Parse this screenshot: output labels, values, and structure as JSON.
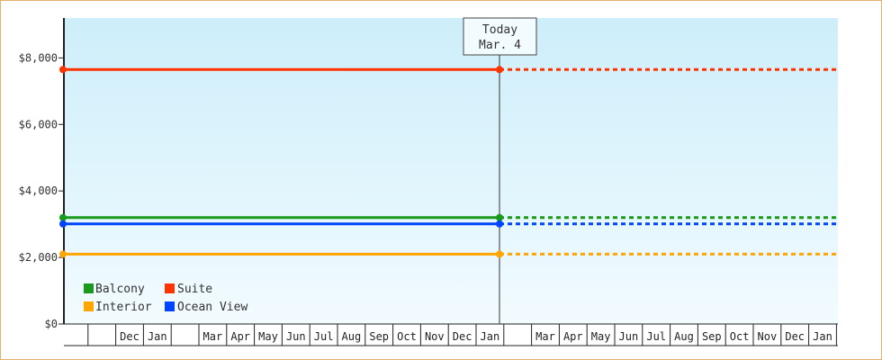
{
  "chart_data": {
    "type": "line",
    "title": "",
    "xlabel": "",
    "ylabel": "",
    "ylim": [
      0,
      9200
    ],
    "y_ticks": [
      0,
      2000,
      4000,
      6000,
      8000
    ],
    "y_tick_labels": [
      "$0",
      "$2,000",
      "$4,000",
      "$6,000",
      "$8,000"
    ],
    "x_range_months": [
      "Oct",
      "Nov",
      "Dec",
      "Jan",
      "Feb",
      "Mar",
      "Apr",
      "May",
      "Jun",
      "Jul",
      "Aug",
      "Sep",
      "Oct",
      "Nov",
      "Dec",
      "Jan",
      "Feb",
      "Mar",
      "Apr",
      "May",
      "Jun",
      "Jul",
      "Aug",
      "Sep",
      "Oct",
      "Nov",
      "Dec",
      "Jan",
      "Feb"
    ],
    "x_labels": [
      "",
      "",
      "Dec",
      "Jan",
      "",
      "Mar",
      "Apr",
      "May",
      "Jun",
      "Jul",
      "Aug",
      "Sep",
      "Oct",
      "Nov",
      "Dec",
      "Jan",
      "",
      "Mar",
      "Apr",
      "May",
      "Jun",
      "Jul",
      "Aug",
      "Sep",
      "Oct",
      "Nov",
      "Dec",
      "Jan",
      ""
    ],
    "today": {
      "line1": "Today",
      "line2": "Mar. 4",
      "month_index": 17.1
    },
    "series": [
      {
        "name": "Balcony",
        "color": "#1a9a1a",
        "values_history": [
          3200,
          3200
        ],
        "forecast": 3200
      },
      {
        "name": "Suite",
        "color": "#ff3300",
        "values_history": [
          7650,
          7650
        ],
        "forecast": 7650
      },
      {
        "name": "Interior",
        "color": "#ffa500",
        "values_history": [
          2100,
          2100
        ],
        "forecast": 2100
      },
      {
        "name": "Ocean View",
        "color": "#0044ff",
        "values_history": [
          3010,
          3010
        ],
        "forecast": 3010
      }
    ],
    "legend_position": "bottom-left",
    "grid": false,
    "background": [
      "#cdeefa",
      "#f2fbff"
    ]
  }
}
